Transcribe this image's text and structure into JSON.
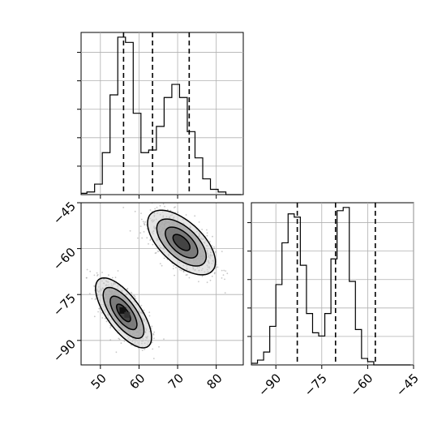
{
  "chart_data": [
    {
      "panel": "marginal-x",
      "type": "histogram",
      "xlim": [
        45,
        87
      ],
      "bins_x": [
        44.5,
        46.5,
        48.5,
        50.5,
        52.5,
        54.5,
        56.5,
        58.5,
        60.5,
        62.5,
        64.5,
        66.5,
        68.5,
        70.5,
        72.5,
        74.5,
        76.5,
        78.5,
        80.5,
        82.5,
        84.5,
        86.5
      ],
      "counts": [
        0.5,
        1,
        4,
        16,
        38,
        60,
        58,
        31,
        16,
        17,
        26,
        37,
        42,
        37,
        24,
        14,
        6,
        2,
        1,
        0,
        0
      ],
      "quantiles": [
        56,
        63.5,
        73
      ],
      "grid": true
    },
    {
      "panel": "marginal-y",
      "type": "histogram",
      "xlim": [
        -98,
        -45
      ],
      "bins_x": [
        -98,
        -96,
        -94,
        -92,
        -90,
        -88,
        -86,
        -84,
        -82,
        -80,
        -78,
        -76,
        -74,
        -72,
        -70,
        -68,
        -66,
        -64,
        -62,
        -60,
        -58,
        -56,
        -54,
        -52,
        -50,
        -48,
        -46
      ],
      "counts": [
        0.5,
        1.5,
        4,
        12,
        25,
        38,
        47,
        46,
        31,
        16,
        10,
        9,
        16,
        33,
        48,
        49,
        26,
        11,
        2,
        1,
        0,
        0,
        0,
        0,
        0,
        0
      ],
      "quantiles": [
        -83,
        -70.5,
        -57.5
      ],
      "xticks": [
        -90,
        -75,
        -60,
        -45
      ],
      "grid": true
    },
    {
      "panel": "joint",
      "type": "contour-scatter",
      "xlim": [
        45,
        87
      ],
      "ylim": [
        -98,
        -45
      ],
      "xticks": [
        50,
        60,
        70,
        80
      ],
      "yticks": [
        -45,
        -60,
        -75,
        -90
      ],
      "modes": [
        {
          "center": [
            56,
            -81
          ],
          "sx": 3.3,
          "sy": 5.2,
          "rho": -0.7
        },
        {
          "center": [
            71,
            -58
          ],
          "sx": 4.0,
          "sy": 4.8,
          "rho": -0.6
        }
      ],
      "grid": true
    }
  ],
  "colors": {
    "line": "#000000",
    "grid": "#b0b0b0",
    "contour_fill": [
      "#cfcfcf",
      "#a0a0a0",
      "#6a6a6a",
      "#333333"
    ],
    "points": "#9a9a9a"
  }
}
